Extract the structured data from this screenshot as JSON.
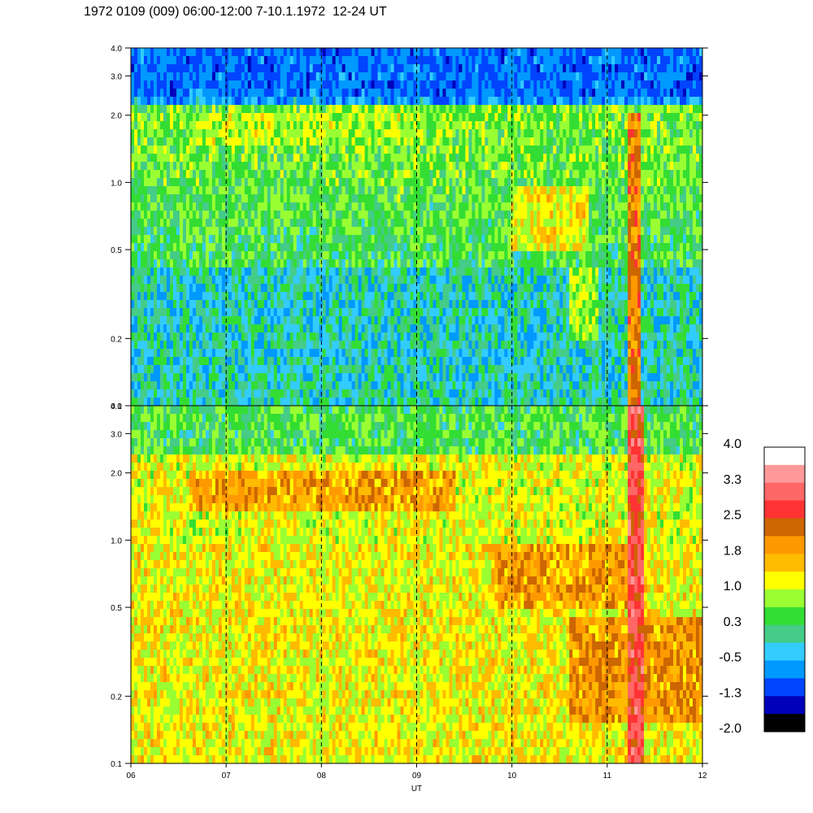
{
  "title": "1972 0109 (009) 06:00-12:00 7-10.1.1972  12-24 UT",
  "chart_data": {
    "type": "heatmap",
    "title": "1972 0109 (009) 06:00-12:00 7-10.1.1972  12-24 UT",
    "xlabel": "UT",
    "x_ticks": [
      "06",
      "07",
      "08",
      "09",
      "10",
      "11",
      "12"
    ],
    "x_range": [
      6,
      12
    ],
    "y_scale": "log",
    "y_range": [
      0.1,
      4.0
    ],
    "y_ticks": [
      "0.1",
      "0.2",
      "0.5",
      "1.0",
      "2.0",
      "3.0",
      "4.0"
    ],
    "dashed_hour_lines": [
      7,
      8,
      9,
      10,
      11
    ],
    "panels": [
      {
        "name": "upper",
        "y_ticks": [
          "0.1",
          "0.2",
          "0.5",
          "1.0",
          "2.0",
          "3.0",
          "4.0"
        ],
        "features": [
          {
            "x": [
              6.0,
              12.0
            ],
            "y": [
              0.1,
              0.4
            ],
            "level": 0.3
          },
          {
            "x": [
              6.0,
              12.0
            ],
            "y": [
              2.5,
              4.0
            ],
            "level": -0.5
          },
          {
            "x": [
              6.6,
              9.1
            ],
            "y": [
              1.5,
              2.1
            ],
            "level": 1.3
          },
          {
            "x": [
              10.0,
              10.8
            ],
            "y": [
              0.5,
              1.0
            ],
            "level": 1.6
          },
          {
            "x": [
              10.6,
              10.9
            ],
            "y": [
              0.2,
              0.4
            ],
            "level": 1.2
          },
          {
            "x": [
              11.2,
              11.35
            ],
            "y": [
              0.1,
              2.0
            ],
            "level": 2.5
          }
        ]
      },
      {
        "name": "lower",
        "y_ticks": [
          "0.1",
          "0.2",
          "0.5",
          "1.0",
          "2.0",
          "3.0",
          "4.0"
        ],
        "features": [
          {
            "x": [
              6.0,
              12.0
            ],
            "y": [
              0.1,
              1.0
            ],
            "level": 1.6
          },
          {
            "x": [
              6.0,
              12.0
            ],
            "y": [
              2.5,
              4.0
            ],
            "level": 0.8
          },
          {
            "x": [
              6.6,
              9.4
            ],
            "y": [
              1.3,
              2.0
            ],
            "level": 2.2
          },
          {
            "x": [
              9.8,
              11.2
            ],
            "y": [
              0.5,
              1.0
            ],
            "level": 2.2
          },
          {
            "x": [
              10.6,
              12.0
            ],
            "y": [
              0.15,
              0.45
            ],
            "level": 2.3
          },
          {
            "x": [
              11.2,
              11.4
            ],
            "y": [
              0.1,
              4.0
            ],
            "level": 3.2
          }
        ]
      }
    ],
    "colorbar": {
      "labels": [
        "4.0",
        "3.3",
        "2.5",
        "1.8",
        "1.0",
        "0.3",
        "-0.5",
        "-1.3",
        "-2.0"
      ],
      "colors": [
        "#ffffff",
        "#ff9999",
        "#ff6666",
        "#ff3333",
        "#cc6600",
        "#ff9900",
        "#ffbb00",
        "#ffff00",
        "#99ff33",
        "#33dd33",
        "#44cc88",
        "#33ccff",
        "#0099ff",
        "#0044ff",
        "#0000bb",
        "#000000"
      ]
    }
  }
}
